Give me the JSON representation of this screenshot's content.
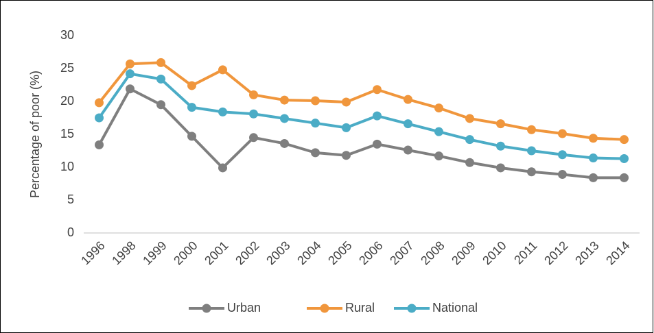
{
  "chart_data": {
    "type": "line",
    "y_label": "Percentage of poor (%)",
    "categories": [
      "1996",
      "1998",
      "1999",
      "2000",
      "2001",
      "2002",
      "2003",
      "2004",
      "2005",
      "2006",
      "2007",
      "2008",
      "2009",
      "2010",
      "2011",
      "2012",
      "2013",
      "2014"
    ],
    "series": [
      {
        "name": "Urban",
        "color": "#7f7f7f",
        "values": [
          13.4,
          21.9,
          19.5,
          14.7,
          9.9,
          14.5,
          13.6,
          12.2,
          11.8,
          13.5,
          12.6,
          11.7,
          10.7,
          9.9,
          9.3,
          8.9,
          8.4,
          8.4
        ]
      },
      {
        "name": "Rural",
        "color": "#f0963c",
        "values": [
          19.8,
          25.7,
          25.9,
          22.4,
          24.8,
          21.0,
          20.2,
          20.1,
          19.9,
          21.8,
          20.3,
          19.0,
          17.4,
          16.6,
          15.7,
          15.1,
          14.4,
          14.2
        ]
      },
      {
        "name": "National",
        "color": "#4bacc6",
        "values": [
          17.5,
          24.2,
          23.4,
          19.1,
          18.4,
          18.1,
          17.4,
          16.7,
          16.0,
          17.8,
          16.6,
          15.4,
          14.2,
          13.2,
          12.5,
          11.9,
          11.4,
          11.3
        ]
      }
    ],
    "ylim": [
      0,
      30
    ],
    "yticks": [
      0,
      5,
      10,
      15,
      20,
      25,
      30
    ],
    "grid": false
  }
}
